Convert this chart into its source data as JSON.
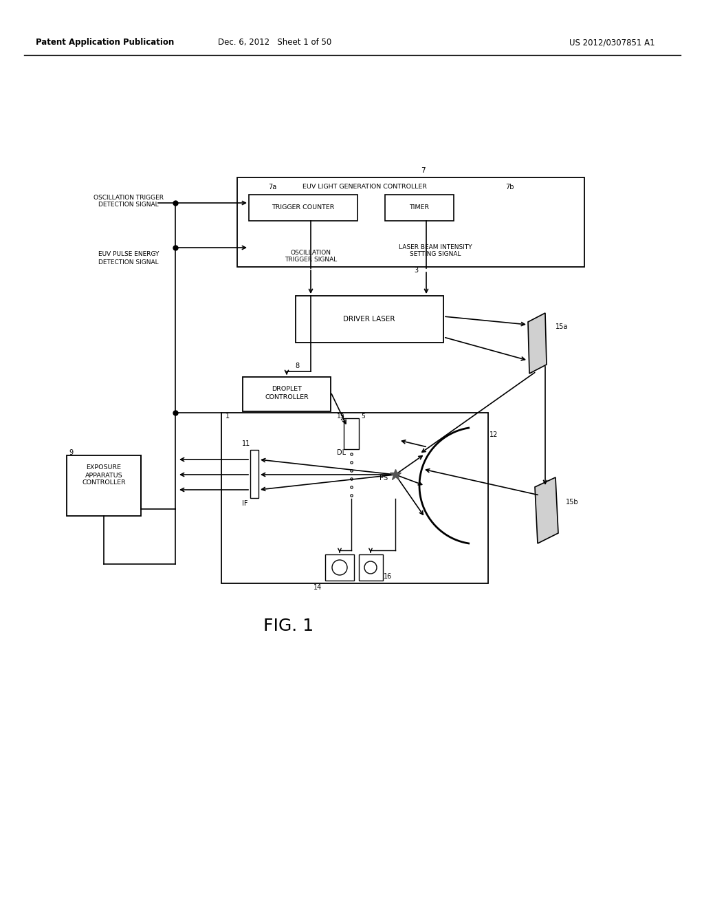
{
  "bg_color": "#ffffff",
  "text_color": "#000000",
  "line_color": "#000000",
  "header_left": "Patent Application Publication",
  "header_center": "Dec. 6, 2012   Sheet 1 of 50",
  "header_right": "US 2012/0307851 A1",
  "fig_label": "FIG. 1",
  "figsize": [
    10.24,
    13.2
  ],
  "dpi": 100
}
